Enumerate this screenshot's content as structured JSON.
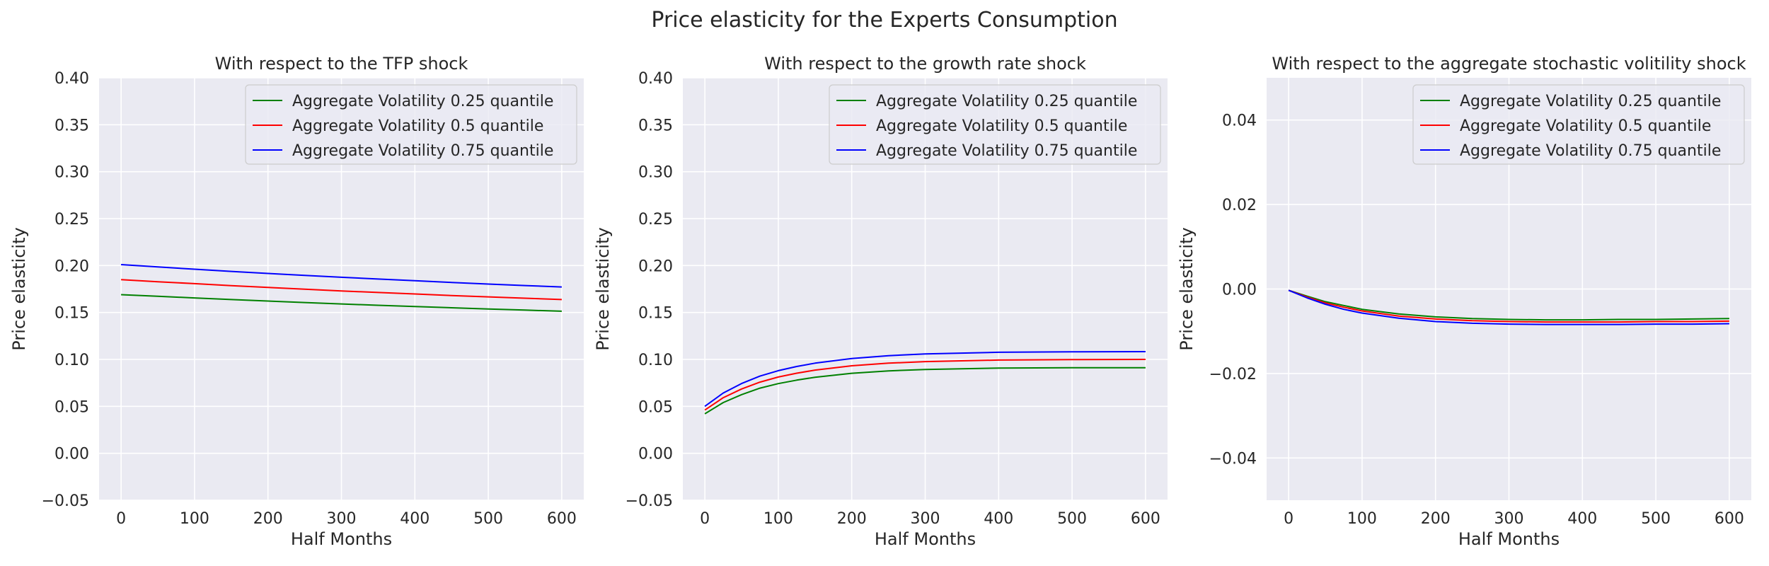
{
  "suptitle": "Price elasticity for the Experts Consumption",
  "colors": {
    "background": "#eaeaf2",
    "grid": "#ffffff",
    "series": [
      "#008000",
      "#ff0000",
      "#0000ff"
    ]
  },
  "chart_data": [
    {
      "type": "line",
      "title": "With respect to the TFP shock",
      "xlabel": "Half Months",
      "ylabel": "Price elasticity",
      "xlim": [
        -30,
        630
      ],
      "ylim": [
        -0.05,
        0.4
      ],
      "xticks": [
        0,
        100,
        200,
        300,
        400,
        500,
        600
      ],
      "yticks": [
        -0.05,
        0.0,
        0.05,
        0.1,
        0.15,
        0.2,
        0.25,
        0.3,
        0.35,
        0.4
      ],
      "ytick_labels": [
        "−0.05",
        "0.00",
        "0.05",
        "0.10",
        "0.15",
        "0.20",
        "0.25",
        "0.30",
        "0.35",
        "0.40"
      ],
      "grid": true,
      "legend_position": "top-right",
      "x": [
        0,
        50,
        100,
        150,
        200,
        250,
        300,
        350,
        400,
        450,
        500,
        550,
        600
      ],
      "series": [
        {
          "name": "Aggregate Volatility 0.25 quantile",
          "color": "#008000",
          "values": [
            0.169,
            0.1672,
            0.1655,
            0.1638,
            0.1622,
            0.1606,
            0.1591,
            0.1577,
            0.1563,
            0.155,
            0.1537,
            0.1525,
            0.1513
          ]
        },
        {
          "name": "Aggregate Volatility 0.5 quantile",
          "color": "#ff0000",
          "values": [
            0.185,
            0.1828,
            0.1807,
            0.1786,
            0.1767,
            0.1748,
            0.173,
            0.1713,
            0.1697,
            0.1681,
            0.1666,
            0.1652,
            0.1638
          ]
        },
        {
          "name": "Aggregate Volatility 0.75 quantile",
          "color": "#0000ff",
          "values": [
            0.201,
            0.1985,
            0.1961,
            0.1938,
            0.1916,
            0.1895,
            0.1875,
            0.1856,
            0.1838,
            0.182,
            0.1803,
            0.1787,
            0.1772
          ]
        }
      ]
    },
    {
      "type": "line",
      "title": "With respect to the growth rate shock",
      "xlabel": "Half Months",
      "ylabel": "Price elasticity",
      "xlim": [
        -30,
        630
      ],
      "ylim": [
        -0.05,
        0.4
      ],
      "xticks": [
        0,
        100,
        200,
        300,
        400,
        500,
        600
      ],
      "yticks": [
        -0.05,
        0.0,
        0.05,
        0.1,
        0.15,
        0.2,
        0.25,
        0.3,
        0.35,
        0.4
      ],
      "ytick_labels": [
        "−0.05",
        "0.00",
        "0.05",
        "0.10",
        "0.15",
        "0.20",
        "0.25",
        "0.30",
        "0.35",
        "0.40"
      ],
      "grid": true,
      "legend_position": "top-right",
      "x": [
        0,
        25,
        50,
        75,
        100,
        125,
        150,
        200,
        250,
        300,
        400,
        500,
        600
      ],
      "series": [
        {
          "name": "Aggregate Volatility 0.25 quantile",
          "color": "#008000",
          "values": [
            0.042,
            0.054,
            0.0625,
            0.0694,
            0.0742,
            0.0779,
            0.081,
            0.0852,
            0.0878,
            0.0893,
            0.0907,
            0.0911,
            0.0912
          ]
        },
        {
          "name": "Aggregate Volatility 0.5 quantile",
          "color": "#ff0000",
          "values": [
            0.046,
            0.0592,
            0.0685,
            0.0758,
            0.0812,
            0.0853,
            0.0886,
            0.0932,
            0.096,
            0.0977,
            0.0993,
            0.0998,
            0.1
          ]
        },
        {
          "name": "Aggregate Volatility 0.75 quantile",
          "color": "#0000ff",
          "values": [
            0.05,
            0.0642,
            0.0743,
            0.0822,
            0.088,
            0.0925,
            0.096,
            0.101,
            0.104,
            0.1059,
            0.1076,
            0.1081,
            0.1083
          ]
        }
      ]
    },
    {
      "type": "line",
      "title": "With respect to the aggregate stochastic volitility shock",
      "xlabel": "Half Months",
      "ylabel": "Price elasticity",
      "xlim": [
        -30,
        630
      ],
      "ylim": [
        -0.05,
        0.05
      ],
      "xticks": [
        0,
        100,
        200,
        300,
        400,
        500,
        600
      ],
      "yticks": [
        -0.04,
        -0.02,
        0.0,
        0.02,
        0.04
      ],
      "ytick_labels": [
        "−0.04",
        "−0.02",
        "0.00",
        "0.02",
        "0.04"
      ],
      "grid": true,
      "legend_position": "top-right",
      "x": [
        0,
        25,
        50,
        75,
        100,
        150,
        200,
        250,
        300,
        350,
        400,
        450,
        500,
        550,
        600
      ],
      "series": [
        {
          "name": "Aggregate Volatility 0.25 quantile",
          "color": "#008000",
          "values": [
            -0.0003,
            -0.0017,
            -0.003,
            -0.0039,
            -0.0048,
            -0.0059,
            -0.0066,
            -0.007,
            -0.0072,
            -0.0073,
            -0.0073,
            -0.0072,
            -0.0072,
            -0.0071,
            -0.007
          ]
        },
        {
          "name": "Aggregate Volatility 0.5 quantile",
          "color": "#ff0000",
          "values": [
            -0.0003,
            -0.0019,
            -0.0033,
            -0.0043,
            -0.0052,
            -0.0064,
            -0.0071,
            -0.0075,
            -0.0077,
            -0.0078,
            -0.0078,
            -0.0078,
            -0.0077,
            -0.0077,
            -0.0076
          ]
        },
        {
          "name": "Aggregate Volatility 0.75 quantile",
          "color": "#0000ff",
          "values": [
            -0.0003,
            -0.0021,
            -0.0036,
            -0.0048,
            -0.0057,
            -0.0069,
            -0.0077,
            -0.0081,
            -0.0083,
            -0.0084,
            -0.0084,
            -0.0084,
            -0.0083,
            -0.0083,
            -0.0082
          ]
        }
      ]
    }
  ]
}
